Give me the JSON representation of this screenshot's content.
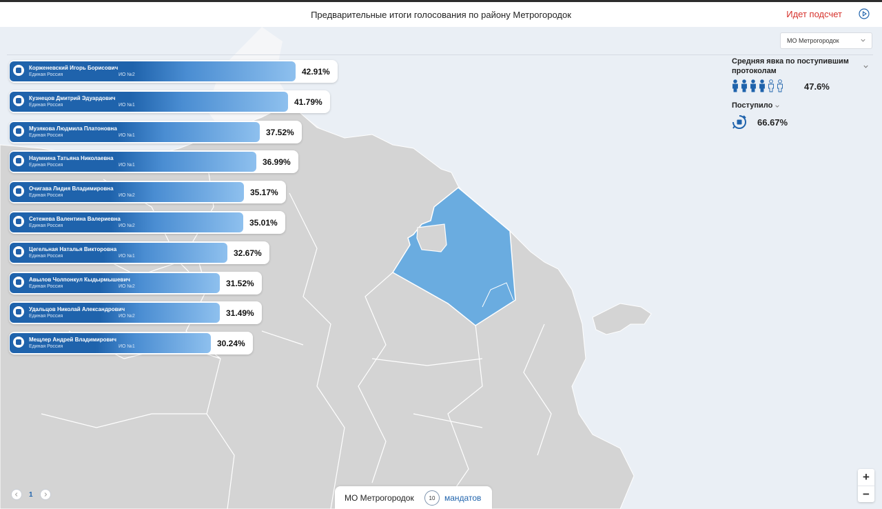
{
  "header": {
    "title": "Предварительные итоги голосования по району Метрогородок",
    "status": "Идет подсчет"
  },
  "selector": {
    "value": "МО Метрогородок"
  },
  "candidates": [
    {
      "name": "Корженевский Игорь Борисович",
      "party": "Единая Россия",
      "io": "ИО №2",
      "percent": "42.91%",
      "value": 42.91
    },
    {
      "name": "Кузнецов Дмитрий Эдуардович",
      "party": "Единая Россия",
      "io": "ИО №1",
      "percent": "41.79%",
      "value": 41.79
    },
    {
      "name": "Музякова Людмила Платоновна",
      "party": "Единая Россия",
      "io": "ИО №1",
      "percent": "37.52%",
      "value": 37.52
    },
    {
      "name": "Наумкина Татьяна Николаевна",
      "party": "Единая Россия",
      "io": "ИО №1",
      "percent": "36.99%",
      "value": 36.99
    },
    {
      "name": "Очигава Лидия Владимировна",
      "party": "Единая Россия",
      "io": "ИО №2",
      "percent": "35.17%",
      "value": 35.17
    },
    {
      "name": "Сетежева Валентина Валериевна",
      "party": "Единая Россия",
      "io": "ИО №2",
      "percent": "35.01%",
      "value": 35.01
    },
    {
      "name": "Цегельная Наталья Викторовна",
      "party": "Единая Россия",
      "io": "ИО №1",
      "percent": "32.67%",
      "value": 32.67
    },
    {
      "name": "Авылов Чолпонкул Кыдырмышевич",
      "party": "Единая Россия",
      "io": "ИО №2",
      "percent": "31.52%",
      "value": 31.52
    },
    {
      "name": "Удальцов Николай Александрович",
      "party": "Единая Россия",
      "io": "ИО №2",
      "percent": "31.49%",
      "value": 31.49
    },
    {
      "name": "Мещлер Андрей Владимирович",
      "party": "Единая Россия",
      "io": "ИО №1",
      "percent": "30.24%",
      "value": 30.24
    }
  ],
  "stats": {
    "turnout_label": "Средняя явка по поступившим протоколам",
    "turnout_value": "47.6%",
    "turnout_filled_figures": 4,
    "turnout_total_figures": 6,
    "received_label": "Поступило",
    "received_value": "66.67%"
  },
  "map": {
    "highlight_color": "#6aace0",
    "district_color": "#d4d4d4"
  },
  "pager": {
    "page": "1"
  },
  "bottom": {
    "mo": "МО Метрогородок",
    "mandates_count": "10",
    "mandates_label": "мандатов"
  },
  "zoom": {
    "plus": "+",
    "minus": "−"
  },
  "colors": {
    "accent": "#1f63ac",
    "status": "#d6302a"
  }
}
